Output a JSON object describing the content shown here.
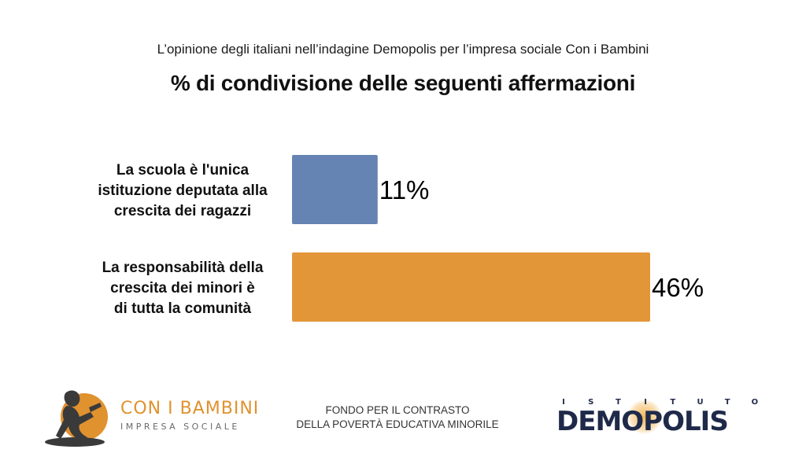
{
  "header": {
    "subtitle": "L’opinione degli italiani nell’indagine Demopolis per l’impresa sociale Con i Bambini",
    "title": "% di condivisione delle seguenti affermazioni"
  },
  "chart_data": {
    "type": "bar",
    "orientation": "horizontal",
    "categories": [
      [
        "La scuola è l'unica",
        "istituzione deputata alla",
        "crescita dei ragazzi"
      ],
      [
        "La responsabilità della",
        "crescita dei minori è",
        "di tutta la comunità"
      ]
    ],
    "values": [
      11,
      46
    ],
    "value_labels": [
      "11%",
      "46%"
    ],
    "colors": [
      "#6584b4",
      "#e39638"
    ],
    "xlim": [
      0,
      46
    ],
    "grid": false
  },
  "footer": {
    "brand_name": "CON I BAMBINI",
    "brand_sub": "IMPRESA SOCIALE",
    "fund_line1": "FONDO PER IL CONTRASTO",
    "fund_line2": "DELLA POVERTÀ EDUCATIVA MINORILE",
    "demopolis_top": "ISTITUTO",
    "demopolis_name": "DEMOPOLIS",
    "brand_color": "#e0922f",
    "demopolis_color": "#1f2a4a"
  }
}
